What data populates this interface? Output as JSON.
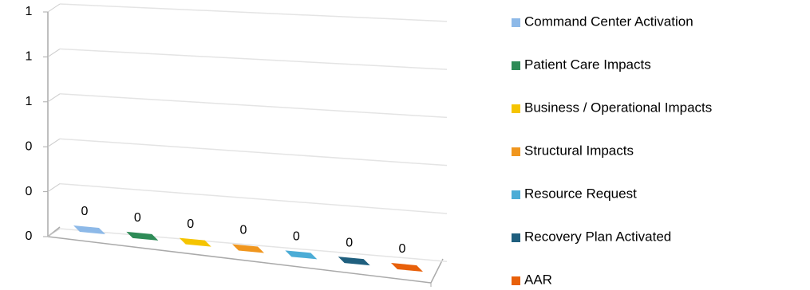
{
  "chart_data": {
    "type": "bar3d",
    "series": [
      {
        "name": "Command Center Activation",
        "color": "#8db9e8",
        "values": [
          0
        ]
      },
      {
        "name": "Patient Care Impacts",
        "color": "#2e8b57",
        "values": [
          0
        ]
      },
      {
        "name": "Business / Operational Impacts",
        "color": "#f5c400",
        "values": [
          0
        ]
      },
      {
        "name": "Structural Impacts",
        "color": "#f0961e",
        "values": [
          0
        ]
      },
      {
        "name": "Resource Request",
        "color": "#4bacd6",
        "values": [
          0
        ]
      },
      {
        "name": "Recovery Plan Activated",
        "color": "#1f5f7e",
        "values": [
          0
        ]
      },
      {
        "name": "AAR",
        "color": "#e8600a",
        "values": [
          0
        ]
      }
    ],
    "ylim": [
      0,
      1
    ],
    "yticks": [
      0,
      {
        "value": 0.2,
        "label": "0"
      },
      {
        "value": 0.4,
        "label": "0"
      },
      {
        "value": 0.6,
        "label": "1"
      },
      {
        "value": 0.8,
        "label": "1"
      },
      1
    ],
    "grid": true,
    "legend": "right"
  }
}
